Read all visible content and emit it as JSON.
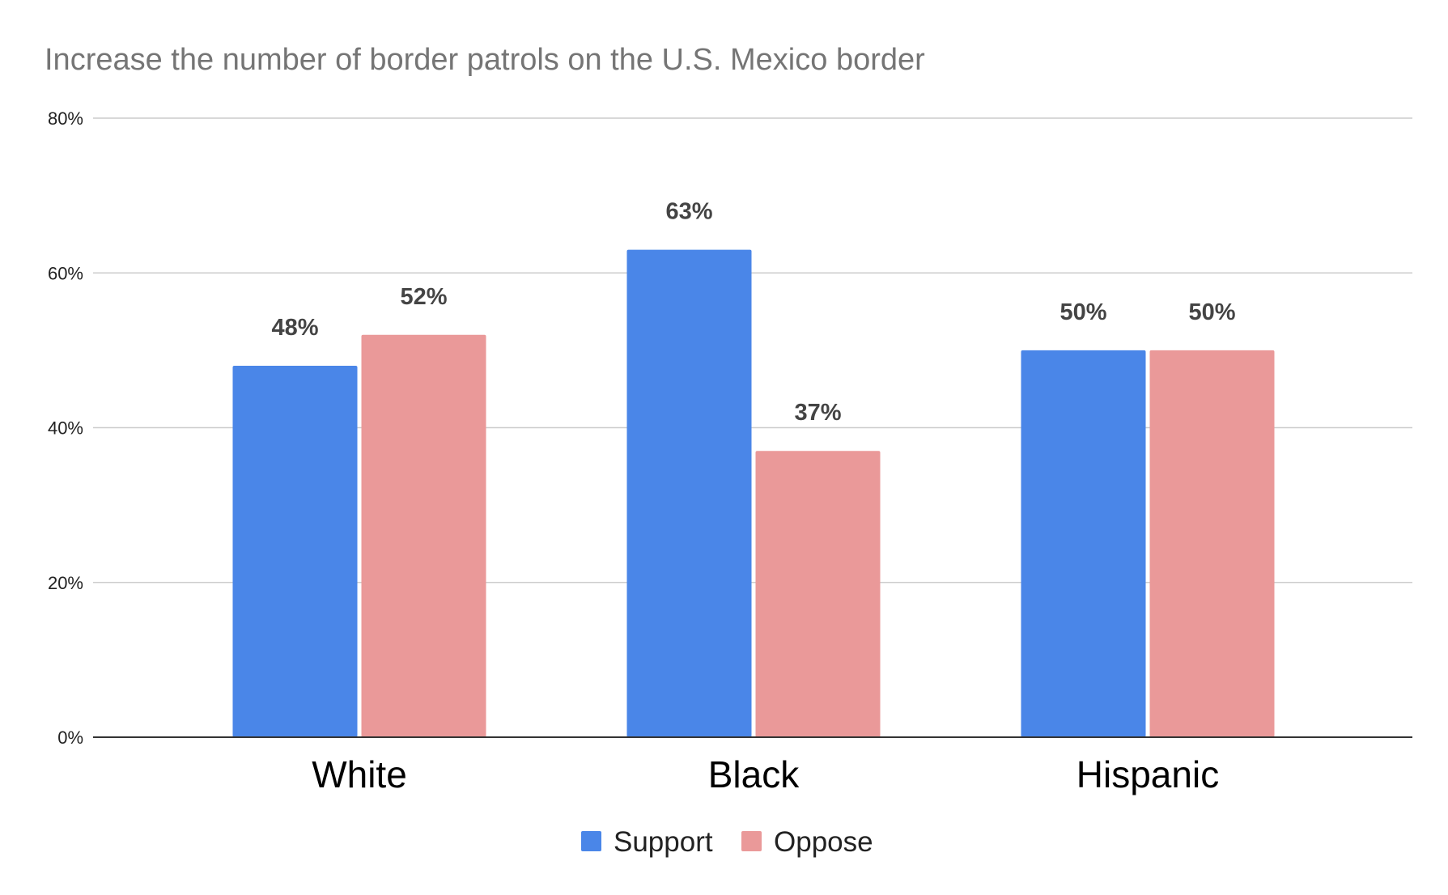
{
  "chart_data": {
    "type": "bar",
    "title": "Increase the number of border patrols on the U.S. Mexico border",
    "categories": [
      "White",
      "Black",
      "Hispanic"
    ],
    "series": [
      {
        "name": "Support",
        "values": [
          48,
          63,
          50
        ],
        "color": "#4a86e8"
      },
      {
        "name": "Oppose",
        "values": [
          52,
          37,
          50
        ],
        "color": "#ea9999"
      }
    ],
    "data_labels": [
      [
        "48%",
        "63%",
        "50%"
      ],
      [
        "52%",
        "37%",
        "50%"
      ]
    ],
    "ylim": [
      0,
      80
    ],
    "yticks": [
      0,
      20,
      40,
      60,
      80
    ],
    "ytick_labels": [
      "0%",
      "20%",
      "40%",
      "60%",
      "80%"
    ],
    "xlabel": "",
    "ylabel": "",
    "grid": true,
    "legend_position": "bottom-center"
  }
}
